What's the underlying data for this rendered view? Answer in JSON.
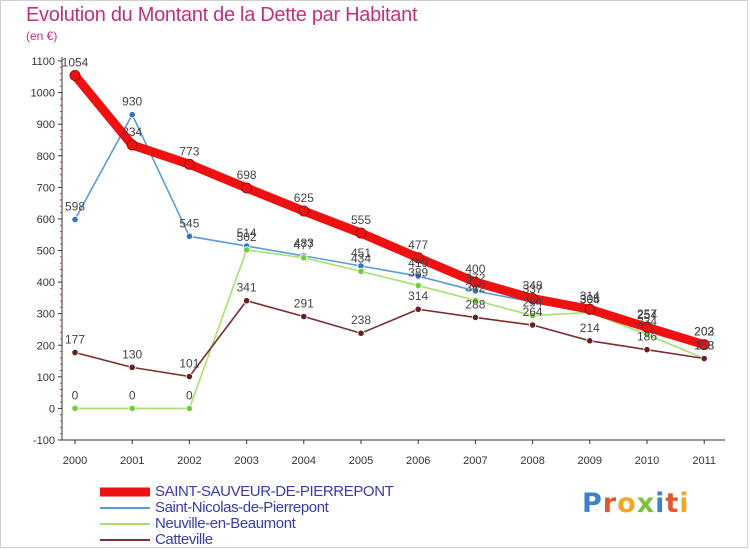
{
  "title": "Evolution du Montant de la Dette par Habitant",
  "subtitle": "(en €)",
  "brand": {
    "text": "Proxiti",
    "letter_colors": [
      "#3b83c4",
      "#e4572e",
      "#f5a623",
      "#7fbf3f",
      "#3b83c4",
      "#e4572e",
      "#f5a623"
    ]
  },
  "chart_data": {
    "type": "line",
    "categories": [
      "2000",
      "2001",
      "2002",
      "2003",
      "2004",
      "2005",
      "2006",
      "2007",
      "2008",
      "2009",
      "2010",
      "2011"
    ],
    "y_ticks": [
      -100,
      0,
      100,
      200,
      300,
      400,
      500,
      600,
      700,
      800,
      900,
      1000,
      1100
    ],
    "ylim": [
      -100,
      1100
    ],
    "grid": false,
    "legend_position": "bottom-left",
    "series": [
      {
        "name": "SAINT-SAUVEUR-DE-PIERREPONT",
        "color": "#ee1111",
        "marker_color": "#ee1111",
        "emphasis": true,
        "values": [
          1054,
          834,
          773,
          698,
          625,
          555,
          477,
          400,
          348,
          314,
          257,
          202
        ],
        "labels": [
          "1054",
          "834",
          "773",
          "698",
          "625",
          "555",
          "477",
          "400",
          "348",
          "314",
          "257",
          "202"
        ]
      },
      {
        "name": "Saint-Nicolas-de-Pierrepont",
        "color": "#5b9bd5",
        "marker_color": "#2e75c6",
        "values": [
          598,
          930,
          545,
          514,
          483,
          451,
          419,
          372,
          337,
          305,
          254,
          203
        ],
        "labels": [
          "598",
          "930",
          "545",
          "514",
          "483",
          "451",
          "419",
          "372",
          "337",
          "305",
          "254",
          "203"
        ]
      },
      {
        "name": "Neuville-en-Beaumont",
        "color": "#a6e070",
        "marker_color": "#6bcf3a",
        "values": [
          0,
          0,
          0,
          502,
          477,
          434,
          389,
          342,
          294,
          304,
          234,
          158
        ],
        "labels": [
          "0",
          "0",
          "0",
          "502",
          "477",
          "434",
          "389",
          "342",
          "294",
          "304",
          "234",
          "158"
        ]
      },
      {
        "name": "Catteville",
        "color": "#7a2e2e",
        "marker_color": "#6a1f1f",
        "values": [
          177,
          130,
          101,
          341,
          291,
          238,
          314,
          288,
          264,
          214,
          186,
          158
        ],
        "labels": [
          "177",
          "130",
          "101",
          "341",
          "291",
          "238",
          "314",
          "288",
          "264",
          "214",
          "186",
          "158"
        ]
      }
    ]
  }
}
